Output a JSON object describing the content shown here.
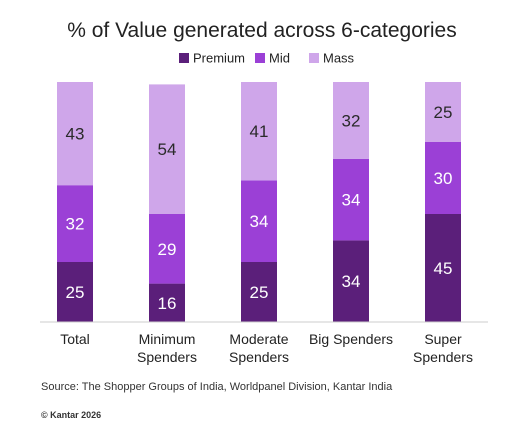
{
  "chart_data": {
    "type": "bar",
    "stacked": true,
    "title": "% of Value generated across 6-categories",
    "categories": [
      "Total",
      "Minimum\nSpenders",
      "Moderate\nSpenders",
      "Big Spenders",
      "Super\nSpenders"
    ],
    "series": [
      {
        "name": "Premium",
        "values": [
          25,
          16,
          25,
          34,
          45
        ],
        "color": "#5b1f7a"
      },
      {
        "name": "Mid",
        "values": [
          32,
          29,
          34,
          34,
          30
        ],
        "color": "#9b40d6"
      },
      {
        "name": "Mass",
        "values": [
          43,
          54,
          41,
          32,
          25
        ],
        "color": "#cfa6ea"
      }
    ],
    "ylim": [
      0,
      100
    ],
    "legend_position": "top-center",
    "grid": false
  },
  "footer": {
    "source": "Source: The Shopper Groups of India, Worldpanel Division, Kantar India",
    "copyright": "© Kantar 2026"
  }
}
